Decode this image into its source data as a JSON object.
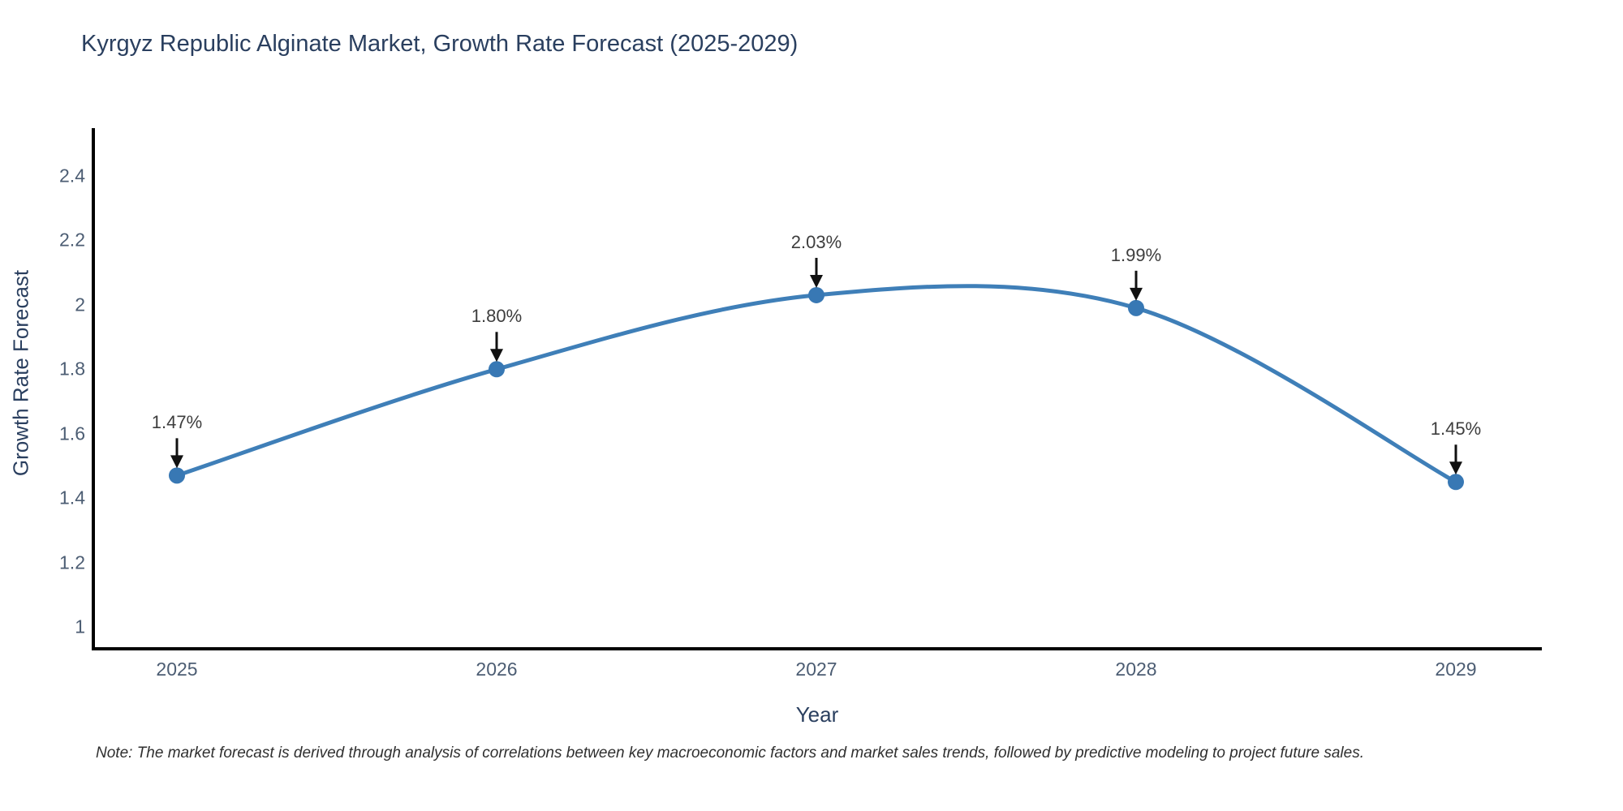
{
  "footnote": "Note: The market forecast is derived through analysis of correlations between key macroeconomic factors and market sales trends, followed by predictive modeling to project future sales.",
  "chart_data": {
    "type": "line",
    "title": "Kyrgyz Republic Alginate Market, Growth Rate Forecast (2025-2029)",
    "xlabel": "Year",
    "ylabel": "Growth Rate Forecast",
    "categories": [
      "2025",
      "2026",
      "2027",
      "2028",
      "2029"
    ],
    "values": [
      1.47,
      1.8,
      2.03,
      1.99,
      1.45
    ],
    "point_labels": [
      "1.47%",
      "1.80%",
      "2.03%",
      "1.99%",
      "1.45%"
    ],
    "yticks": [
      1,
      1.2,
      1.4,
      1.6,
      1.8,
      2,
      2.2,
      2.4
    ],
    "ytick_labels": [
      "1",
      "1.2",
      "1.4",
      "1.6",
      "1.8",
      "2",
      "2.2",
      "2.4"
    ],
    "ylim": [
      0.93,
      2.55
    ],
    "line_shape": "spline",
    "grid": false,
    "legend": false,
    "annotations": "black arrow pointing down to each marker with percent label above",
    "colors": {
      "line": "#3f7fb8",
      "marker": "#3878b4",
      "axis": "#000000",
      "title_text": "#2a3f5f",
      "tick_text": "#4c5d73",
      "annotation_text": "#3d3d3d",
      "arrow": "#111111",
      "background": "#ffffff"
    }
  }
}
